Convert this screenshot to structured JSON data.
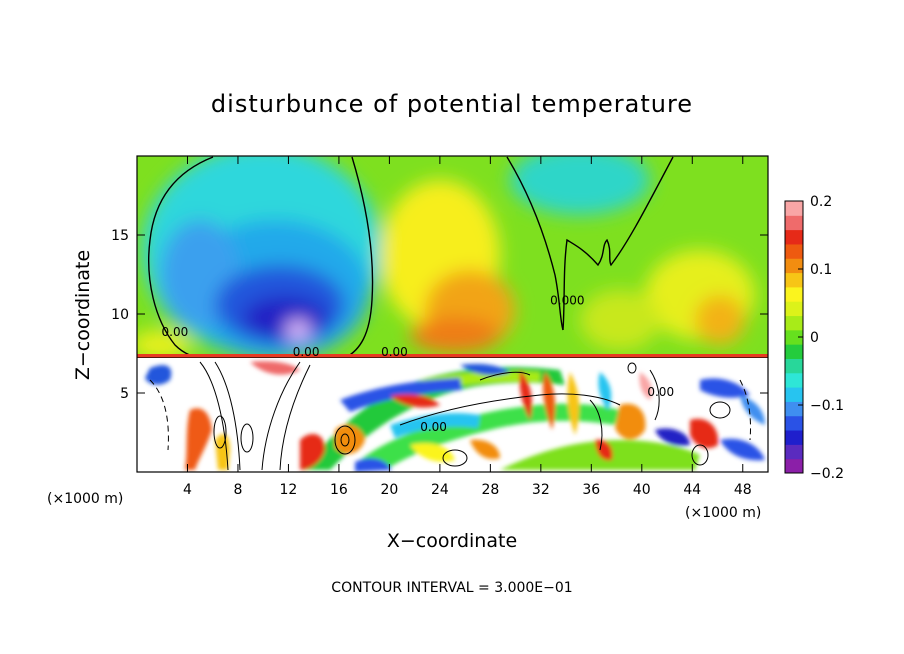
{
  "chart_data": {
    "type": "heatmap",
    "title": "disturbunce of potential temperature",
    "xlabel": "X−coordinate",
    "ylabel": "Z−coordinate",
    "x_unit": "(×1000 m)",
    "y_unit": "(×1000 m)",
    "footer": "CONTOUR INTERVAL = 3.000E−01",
    "xlim": [
      0,
      50
    ],
    "ylim": [
      0,
      20
    ],
    "x_ticks": [
      4,
      8,
      12,
      16,
      20,
      24,
      28,
      32,
      36,
      40,
      44,
      48
    ],
    "x_tick_labels": [
      "4",
      "8",
      "12",
      "16",
      "20",
      "24",
      "28",
      "32",
      "36",
      "40",
      "44",
      "48"
    ],
    "y_ticks": [
      5,
      10,
      15
    ],
    "y_tick_labels": [
      "5",
      "10",
      "15"
    ],
    "colorbar": {
      "range": [
        -0.2,
        0.2
      ],
      "ticks": [
        0.2,
        0.1,
        0,
        -0.1,
        -0.2
      ],
      "tick_labels": [
        "0.2",
        "0.1",
        "0",
        "−0.1",
        "−0.2"
      ],
      "colors": [
        "#8b1fa8",
        "#5a2bbf",
        "#1f1fcc",
        "#2a52e6",
        "#3f8ff0",
        "#27c4f0",
        "#2ee6d7",
        "#28d79a",
        "#24cc3d",
        "#66e01e",
        "#a8eb18",
        "#dcf21a",
        "#fbf41e",
        "#f7c516",
        "#f28d10",
        "#ee5a10",
        "#e62a18",
        "#ef6b6b",
        "#f9a6a6"
      ]
    },
    "contour_labels": [
      {
        "text": "0.00",
        "x": 3,
        "z": 8.6
      },
      {
        "text": "0.00",
        "x": 13.4,
        "z": 7.35
      },
      {
        "text": "0.00",
        "x": 20.4,
        "z": 7.35
      },
      {
        "text": "0.00",
        "x": 23.5,
        "z": 2.6
      },
      {
        "text": "0.000",
        "x": 34.1,
        "z": 10.6
      },
      {
        "text": "0.00",
        "x": 41.5,
        "z": 4.8
      }
    ]
  }
}
